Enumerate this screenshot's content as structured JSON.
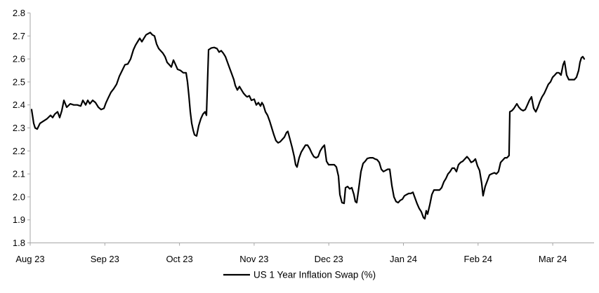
{
  "chart_data": {
    "type": "line",
    "title": "",
    "legend_position": "bottom-center",
    "grid": false,
    "colors": {
      "line": "#000000",
      "axis": "#a6a6a6",
      "text": "#000000",
      "background": "#ffffff"
    },
    "x_axis": {
      "tick_labels": [
        "Aug 23",
        "Sep 23",
        "Oct 23",
        "Nov 23",
        "Dec 23",
        "Jan 24",
        "Feb 24",
        "Mar 24"
      ],
      "x_scale_note": "x in points = months after Aug-23 tick (0 = Aug 23 tick, 7 = Mar 24 tick)"
    },
    "y_axis": {
      "tick_labels": [
        "1.8",
        "1.9",
        "2.0",
        "2.1",
        "2.2",
        "2.3",
        "2.4",
        "2.5",
        "2.6",
        "2.7",
        "2.8"
      ],
      "range": [
        1.8,
        2.8
      ],
      "step": 0.1
    },
    "series": [
      {
        "name": "US 1 Year Inflation Swap (%)",
        "points": [
          [
            0.019,
            2.38
          ],
          [
            0.047,
            2.32
          ],
          [
            0.066,
            2.3
          ],
          [
            0.094,
            2.295
          ],
          [
            0.132,
            2.32
          ],
          [
            0.179,
            2.33
          ],
          [
            0.226,
            2.34
          ],
          [
            0.273,
            2.355
          ],
          [
            0.301,
            2.345
          ],
          [
            0.329,
            2.36
          ],
          [
            0.367,
            2.37
          ],
          [
            0.395,
            2.345
          ],
          [
            0.423,
            2.375
          ],
          [
            0.452,
            2.42
          ],
          [
            0.489,
            2.39
          ],
          [
            0.536,
            2.405
          ],
          [
            0.583,
            2.4
          ],
          [
            0.63,
            2.4
          ],
          [
            0.677,
            2.395
          ],
          [
            0.706,
            2.42
          ],
          [
            0.743,
            2.4
          ],
          [
            0.771,
            2.42
          ],
          [
            0.8,
            2.405
          ],
          [
            0.837,
            2.42
          ],
          [
            0.875,
            2.41
          ],
          [
            0.913,
            2.39
          ],
          [
            0.95,
            2.38
          ],
          [
            0.988,
            2.385
          ],
          [
            1.016,
            2.41
          ],
          [
            1.044,
            2.43
          ],
          [
            1.082,
            2.455
          ],
          [
            1.119,
            2.47
          ],
          [
            1.157,
            2.49
          ],
          [
            1.195,
            2.525
          ],
          [
            1.232,
            2.55
          ],
          [
            1.27,
            2.575
          ],
          [
            1.308,
            2.578
          ],
          [
            1.345,
            2.6
          ],
          [
            1.383,
            2.64
          ],
          [
            1.411,
            2.66
          ],
          [
            1.439,
            2.675
          ],
          [
            1.468,
            2.69
          ],
          [
            1.496,
            2.675
          ],
          [
            1.524,
            2.69
          ],
          [
            1.552,
            2.705
          ],
          [
            1.58,
            2.71
          ],
          [
            1.609,
            2.715
          ],
          [
            1.637,
            2.705
          ],
          [
            1.665,
            2.7
          ],
          [
            1.693,
            2.665
          ],
          [
            1.722,
            2.645
          ],
          [
            1.75,
            2.635
          ],
          [
            1.778,
            2.625
          ],
          [
            1.806,
            2.61
          ],
          [
            1.834,
            2.585
          ],
          [
            1.863,
            2.575
          ],
          [
            1.891,
            2.565
          ],
          [
            1.919,
            2.595
          ],
          [
            1.947,
            2.575
          ],
          [
            1.975,
            2.555
          ],
          [
            2.013,
            2.55
          ],
          [
            2.051,
            2.54
          ],
          [
            2.088,
            2.54
          ],
          [
            2.107,
            2.5
          ],
          [
            2.126,
            2.44
          ],
          [
            2.145,
            2.37
          ],
          [
            2.164,
            2.32
          ],
          [
            2.183,
            2.29
          ],
          [
            2.201,
            2.27
          ],
          [
            2.23,
            2.265
          ],
          [
            2.258,
            2.31
          ],
          [
            2.286,
            2.34
          ],
          [
            2.314,
            2.36
          ],
          [
            2.342,
            2.37
          ],
          [
            2.361,
            2.355
          ],
          [
            2.389,
            2.64
          ],
          [
            2.427,
            2.648
          ],
          [
            2.465,
            2.65
          ],
          [
            2.502,
            2.645
          ],
          [
            2.531,
            2.63
          ],
          [
            2.559,
            2.636
          ],
          [
            2.587,
            2.625
          ],
          [
            2.615,
            2.61
          ],
          [
            2.643,
            2.585
          ],
          [
            2.672,
            2.56
          ],
          [
            2.7,
            2.535
          ],
          [
            2.728,
            2.51
          ],
          [
            2.747,
            2.485
          ],
          [
            2.775,
            2.465
          ],
          [
            2.803,
            2.48
          ],
          [
            2.832,
            2.465
          ],
          [
            2.86,
            2.45
          ],
          [
            2.888,
            2.44
          ],
          [
            2.907,
            2.435
          ],
          [
            2.935,
            2.44
          ],
          [
            2.963,
            2.42
          ],
          [
            3.001,
            2.425
          ],
          [
            3.029,
            2.4
          ],
          [
            3.057,
            2.41
          ],
          [
            3.086,
            2.395
          ],
          [
            3.104,
            2.41
          ],
          [
            3.123,
            2.4
          ],
          [
            3.151,
            2.37
          ],
          [
            3.18,
            2.355
          ],
          [
            3.208,
            2.33
          ],
          [
            3.236,
            2.3
          ],
          [
            3.264,
            2.27
          ],
          [
            3.292,
            2.245
          ],
          [
            3.321,
            2.235
          ],
          [
            3.349,
            2.24
          ],
          [
            3.377,
            2.25
          ],
          [
            3.405,
            2.26
          ],
          [
            3.434,
            2.28
          ],
          [
            3.452,
            2.285
          ],
          [
            3.481,
            2.25
          ],
          [
            3.509,
            2.215
          ],
          [
            3.537,
            2.175
          ],
          [
            3.556,
            2.14
          ],
          [
            3.575,
            2.13
          ],
          [
            3.603,
            2.17
          ],
          [
            3.631,
            2.195
          ],
          [
            3.659,
            2.21
          ],
          [
            3.688,
            2.225
          ],
          [
            3.716,
            2.225
          ],
          [
            3.744,
            2.21
          ],
          [
            3.772,
            2.19
          ],
          [
            3.8,
            2.175
          ],
          [
            3.829,
            2.17
          ],
          [
            3.857,
            2.175
          ],
          [
            3.885,
            2.2
          ],
          [
            3.913,
            2.215
          ],
          [
            3.942,
            2.225
          ],
          [
            3.97,
            2.155
          ],
          [
            3.998,
            2.14
          ],
          [
            4.036,
            2.14
          ],
          [
            4.073,
            2.14
          ],
          [
            4.102,
            2.13
          ],
          [
            4.13,
            2.09
          ],
          [
            4.149,
            2.01
          ],
          [
            4.177,
            1.975
          ],
          [
            4.205,
            1.972
          ],
          [
            4.224,
            2.04
          ],
          [
            4.252,
            2.045
          ],
          [
            4.28,
            2.035
          ],
          [
            4.309,
            2.04
          ],
          [
            4.337,
            2.01
          ],
          [
            4.356,
            1.98
          ],
          [
            4.374,
            1.975
          ],
          [
            4.403,
            2.04
          ],
          [
            4.431,
            2.11
          ],
          [
            4.459,
            2.145
          ],
          [
            4.487,
            2.155
          ],
          [
            4.516,
            2.167
          ],
          [
            4.553,
            2.17
          ],
          [
            4.591,
            2.17
          ],
          [
            4.619,
            2.165
          ],
          [
            4.647,
            2.162
          ],
          [
            4.676,
            2.15
          ],
          [
            4.704,
            2.12
          ],
          [
            4.732,
            2.11
          ],
          [
            4.76,
            2.115
          ],
          [
            4.789,
            2.12
          ],
          [
            4.817,
            2.12
          ],
          [
            4.845,
            2.05
          ],
          [
            4.873,
            2.0
          ],
          [
            4.901,
            1.98
          ],
          [
            4.929,
            1.975
          ],
          [
            4.958,
            1.985
          ],
          [
            4.986,
            1.99
          ],
          [
            5.014,
            2.005
          ],
          [
            5.042,
            2.01
          ],
          [
            5.071,
            2.015
          ],
          [
            5.099,
            2.015
          ],
          [
            5.127,
            2.02
          ],
          [
            5.155,
            1.995
          ],
          [
            5.183,
            1.97
          ],
          [
            5.211,
            1.95
          ],
          [
            5.24,
            1.935
          ],
          [
            5.268,
            1.91
          ],
          [
            5.287,
            1.905
          ],
          [
            5.306,
            1.94
          ],
          [
            5.324,
            1.925
          ],
          [
            5.353,
            1.965
          ],
          [
            5.381,
            2.01
          ],
          [
            5.409,
            2.03
          ],
          [
            5.447,
            2.03
          ],
          [
            5.484,
            2.03
          ],
          [
            5.512,
            2.04
          ],
          [
            5.541,
            2.065
          ],
          [
            5.569,
            2.08
          ],
          [
            5.597,
            2.1
          ],
          [
            5.625,
            2.11
          ],
          [
            5.653,
            2.125
          ],
          [
            5.682,
            2.125
          ],
          [
            5.71,
            2.11
          ],
          [
            5.738,
            2.14
          ],
          [
            5.766,
            2.15
          ],
          [
            5.794,
            2.155
          ],
          [
            5.823,
            2.165
          ],
          [
            5.851,
            2.175
          ],
          [
            5.879,
            2.165
          ],
          [
            5.907,
            2.15
          ],
          [
            5.936,
            2.155
          ],
          [
            5.964,
            2.165
          ],
          [
            5.992,
            2.135
          ],
          [
            6.02,
            2.115
          ],
          [
            6.048,
            2.06
          ],
          [
            6.067,
            2.005
          ],
          [
            6.095,
            2.045
          ],
          [
            6.124,
            2.07
          ],
          [
            6.152,
            2.095
          ],
          [
            6.18,
            2.1
          ],
          [
            6.218,
            2.105
          ],
          [
            6.246,
            2.1
          ],
          [
            6.274,
            2.11
          ],
          [
            6.302,
            2.15
          ],
          [
            6.331,
            2.16
          ],
          [
            6.359,
            2.17
          ],
          [
            6.387,
            2.17
          ],
          [
            6.415,
            2.18
          ],
          [
            6.425,
            2.37
          ],
          [
            6.453,
            2.375
          ],
          [
            6.481,
            2.385
          ],
          [
            6.519,
            2.405
          ],
          [
            6.547,
            2.39
          ],
          [
            6.575,
            2.38
          ],
          [
            6.604,
            2.375
          ],
          [
            6.632,
            2.38
          ],
          [
            6.66,
            2.4
          ],
          [
            6.688,
            2.42
          ],
          [
            6.716,
            2.435
          ],
          [
            6.745,
            2.385
          ],
          [
            6.773,
            2.37
          ],
          [
            6.801,
            2.39
          ],
          [
            6.829,
            2.415
          ],
          [
            6.857,
            2.435
          ],
          [
            6.886,
            2.45
          ],
          [
            6.914,
            2.47
          ],
          [
            6.942,
            2.49
          ],
          [
            6.97,
            2.5
          ],
          [
            6.998,
            2.52
          ],
          [
            7.027,
            2.53
          ],
          [
            7.055,
            2.54
          ],
          [
            7.083,
            2.54
          ],
          [
            7.111,
            2.53
          ],
          [
            7.139,
            2.575
          ],
          [
            7.158,
            2.59
          ],
          [
            7.186,
            2.53
          ],
          [
            7.215,
            2.51
          ],
          [
            7.252,
            2.51
          ],
          [
            7.29,
            2.51
          ],
          [
            7.318,
            2.52
          ],
          [
            7.347,
            2.55
          ],
          [
            7.365,
            2.585
          ],
          [
            7.384,
            2.605
          ],
          [
            7.403,
            2.61
          ],
          [
            7.422,
            2.6
          ]
        ]
      }
    ],
    "legend": [
      "US 1 Year Inflation Swap (%)"
    ]
  }
}
